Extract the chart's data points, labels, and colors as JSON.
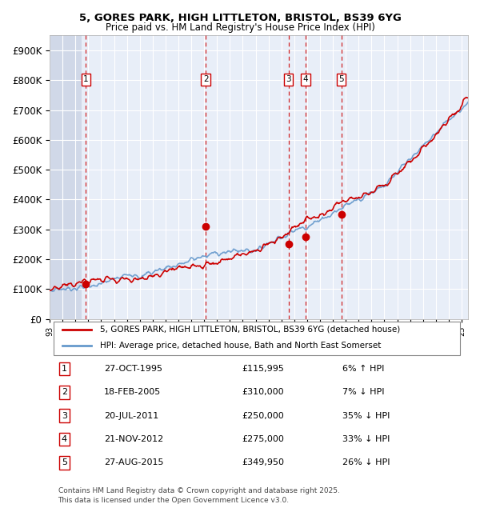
{
  "title_line1": "5, GORES PARK, HIGH LITTLETON, BRISTOL, BS39 6YG",
  "title_line2": "Price paid vs. HM Land Registry's House Price Index (HPI)",
  "legend_line1": "5, GORES PARK, HIGH LITTLETON, BRISTOL, BS39 6YG (detached house)",
  "legend_line2": "HPI: Average price, detached house, Bath and North East Somerset",
  "footer": "Contains HM Land Registry data © Crown copyright and database right 2025.\nThis data is licensed under the Open Government Licence v3.0.",
  "hpi_color": "#6699cc",
  "price_color": "#cc0000",
  "dot_color": "#cc0000",
  "vline_color": "#cc0000",
  "background_chart": "#e8eef8",
  "background_hatch": "#d0d8e8",
  "grid_color": "#ffffff",
  "ylim": [
    0,
    950000
  ],
  "yticks": [
    0,
    100000,
    200000,
    300000,
    400000,
    500000,
    600000,
    700000,
    800000,
    900000
  ],
  "ytick_labels": [
    "£0",
    "£100K",
    "£200K",
    "£300K",
    "£400K",
    "£500K",
    "£600K",
    "£700K",
    "£800K",
    "£900K"
  ],
  "transactions": [
    {
      "num": 1,
      "date": "27-OCT-1995",
      "price": 115995,
      "pct": "6%",
      "dir": "↑",
      "x_year": 1995.82
    },
    {
      "num": 2,
      "date": "18-FEB-2005",
      "price": 310000,
      "pct": "7%",
      "dir": "↓",
      "x_year": 2005.12
    },
    {
      "num": 3,
      "date": "20-JUL-2011",
      "price": 250000,
      "pct": "35%",
      "dir": "↓",
      "x_year": 2011.55
    },
    {
      "num": 4,
      "date": "21-NOV-2012",
      "price": 275000,
      "pct": "33%",
      "dir": "↓",
      "x_year": 2012.89
    },
    {
      "num": 5,
      "date": "27-AUG-2015",
      "price": 349950,
      "pct": "26%",
      "dir": "↓",
      "x_year": 2015.65
    }
  ],
  "xmin": 1993.0,
  "xmax": 2025.5
}
